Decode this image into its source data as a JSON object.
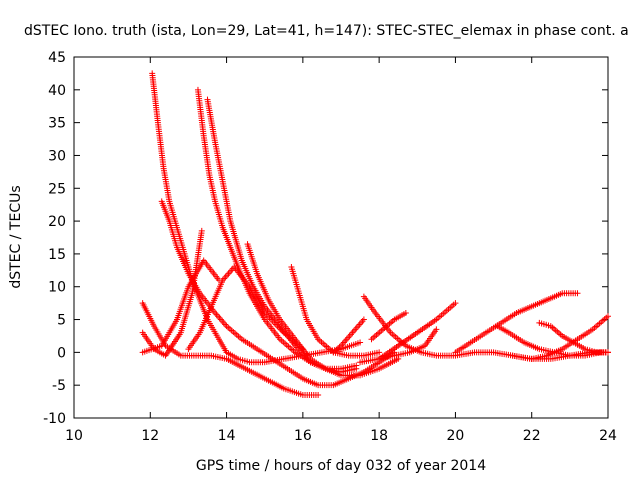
{
  "chart_data": {
    "type": "scatter",
    "title": "dSTEC Iono. truth (ista, Lon=29, Lat=41, h=147): STEC-STEC_elemax in phase cont. a",
    "xlabel": "GPS time / hours of day 032 of year 2014",
    "ylabel": "dSTEC  / TECUs",
    "xlim": [
      10,
      24
    ],
    "ylim": [
      -10,
      45
    ],
    "x_ticks": [
      "10",
      "12",
      "14",
      "16",
      "18",
      "20",
      "22",
      "24"
    ],
    "y_ticks": [
      "-10",
      "-5",
      "0",
      "5",
      "10",
      "15",
      "20",
      "25",
      "30",
      "35",
      "40",
      "45"
    ],
    "grid": false,
    "marker": "plus",
    "series_color": "#ff0000",
    "series": [
      {
        "x": [
          12.05,
          12.2,
          12.35,
          12.5,
          12.7,
          12.9,
          13.1,
          13.3,
          13.5,
          13.8,
          14.0,
          14.3,
          14.6,
          15.0,
          15.5,
          16.0,
          16.5,
          17.0,
          17.5
        ],
        "y": [
          42.5,
          35,
          28,
          23,
          19,
          15,
          11,
          8,
          5,
          2,
          0,
          -1,
          -1.5,
          -1.5,
          -1,
          -0.5,
          0,
          0.5,
          1.5
        ]
      },
      {
        "x": [
          13.25,
          13.4,
          13.55,
          13.7,
          13.9,
          14.1,
          14.3,
          14.6,
          15.0,
          15.4,
          15.8,
          16.2,
          16.6,
          17.0,
          17.4
        ],
        "y": [
          40,
          33,
          27,
          23,
          19,
          16,
          13,
          9,
          5,
          2,
          0,
          -1.5,
          -2.5,
          -3,
          -2.5
        ]
      },
      {
        "x": [
          13.5,
          13.7,
          13.9,
          14.1,
          14.4,
          14.7,
          15.0,
          15.4,
          15.8,
          16.2,
          16.6,
          17.0,
          17.4
        ],
        "y": [
          38.5,
          32,
          26,
          20,
          14,
          10,
          7,
          4,
          1,
          -1.5,
          -2.5,
          -2.5,
          -2
        ]
      },
      {
        "x": [
          12.3,
          12.5,
          12.7,
          13.0,
          13.3,
          13.7,
          14.0,
          14.4,
          14.8,
          15.2,
          15.6,
          16.0,
          16.4,
          16.8,
          17.2,
          17.6,
          18.0,
          18.4
        ],
        "y": [
          23,
          20,
          16,
          12,
          9,
          6,
          4,
          2,
          0.5,
          -1,
          -2.5,
          -4,
          -5,
          -5,
          -4,
          -3,
          -1.5,
          0
        ]
      },
      {
        "x": [
          14.55,
          14.8,
          15.1,
          15.4,
          15.8,
          16.2,
          16.6,
          17.0,
          17.5,
          18.0,
          18.5
        ],
        "y": [
          16.5,
          12,
          8,
          5,
          2,
          -1,
          -2.5,
          -3.5,
          -3.5,
          -2.5,
          -1
        ]
      },
      {
        "x": [
          15.7,
          15.9,
          16.1,
          16.4,
          16.8,
          17.2,
          17.6,
          18.0
        ],
        "y": [
          13,
          9,
          5,
          2,
          0,
          -0.5,
          -0.5,
          0
        ]
      },
      {
        "x": [
          11.8,
          12.1,
          12.4,
          12.8,
          13.2,
          13.6,
          14.0,
          14.5,
          15.0,
          15.5,
          16.0,
          16.4
        ],
        "y": [
          7.5,
          4,
          1,
          -0.5,
          -0.5,
          -0.5,
          -1,
          -2.5,
          -4,
          -5.5,
          -6.5,
          -6.5
        ]
      },
      {
        "x": [
          11.8,
          12.1,
          12.4,
          12.8,
          13.1,
          13.35
        ],
        "y": [
          3,
          0.5,
          -0.5,
          3,
          9,
          18.5
        ]
      },
      {
        "x": [
          11.8,
          12.3,
          12.7,
          13.0,
          13.4,
          13.8
        ],
        "y": [
          0,
          1,
          5,
          10,
          14,
          11
        ]
      },
      {
        "x": [
          13.0,
          13.3,
          13.6,
          13.9,
          14.2,
          14.6,
          15.0,
          15.5,
          16.0
        ],
        "y": [
          0.5,
          3,
          7,
          11,
          13,
          10,
          6,
          3,
          0.5
        ]
      },
      {
        "x": [
          16.8,
          17.0,
          17.3,
          17.6
        ],
        "y": [
          0,
          1,
          3,
          5
        ]
      },
      {
        "x": [
          17.6,
          17.9,
          18.3,
          18.7,
          19.1,
          19.5,
          20.0,
          20.5,
          21.0,
          21.5,
          22.0
        ],
        "y": [
          8.5,
          6,
          3,
          1,
          0,
          -0.5,
          -0.5,
          0,
          0,
          -0.5,
          -1
        ]
      },
      {
        "x": [
          17.8,
          18.1,
          18.4,
          18.7
        ],
        "y": [
          2,
          3.5,
          5,
          6
        ]
      },
      {
        "x": [
          17.5,
          18.0,
          18.5,
          19.0,
          19.5,
          20.0
        ],
        "y": [
          -1.5,
          -1,
          1,
          3,
          5,
          7.5
        ]
      },
      {
        "x": [
          18.0,
          18.4,
          18.8,
          19.2,
          19.5
        ],
        "y": [
          -1,
          -0.5,
          0,
          1,
          3.5
        ]
      },
      {
        "x": [
          20.0,
          20.4,
          20.8,
          21.2,
          21.6,
          22.0,
          22.4,
          22.8,
          23.2
        ],
        "y": [
          0,
          1.5,
          3,
          4.5,
          6,
          7,
          8,
          9,
          9
        ]
      },
      {
        "x": [
          21.1,
          21.4,
          21.8,
          22.2,
          22.6,
          23.0,
          23.4,
          23.8,
          24.0
        ],
        "y": [
          4,
          3,
          1.5,
          0.5,
          0,
          -0.5,
          -0.5,
          0,
          0
        ]
      },
      {
        "x": [
          22.2,
          22.5,
          22.8,
          23.1,
          23.4,
          23.7,
          24.0
        ],
        "y": [
          4.5,
          4,
          2.5,
          1.5,
          0.5,
          0,
          0
        ]
      },
      {
        "x": [
          22.0,
          22.4,
          22.8,
          23.2,
          23.6,
          24.0
        ],
        "y": [
          -1,
          -0.5,
          0.5,
          2,
          3.5,
          5.5
        ]
      },
      {
        "x": [
          21.5,
          22.0,
          22.5,
          23.0,
          23.5,
          24.0
        ],
        "y": [
          -0.5,
          -1,
          -1,
          -0.5,
          0,
          0
        ]
      }
    ]
  }
}
